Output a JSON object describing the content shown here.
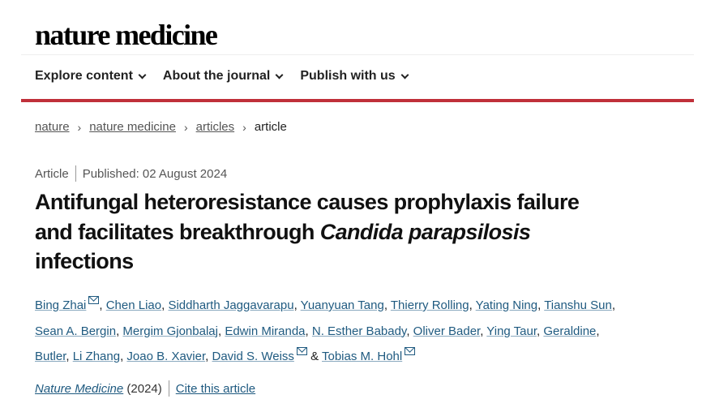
{
  "logo": "nature medicine",
  "nav": [
    "Explore content",
    "About the journal",
    "Publish with us"
  ],
  "breadcrumb": [
    "nature",
    "nature medicine",
    "articles",
    "article"
  ],
  "meta": {
    "type": "Article",
    "published": "Published: 02 August 2024"
  },
  "title": {
    "line1": "Antifungal heteroresistance causes prophylaxis failure",
    "line2a": "and facilitates breakthrough ",
    "line2b": "Candida parapsilosis",
    "line3": "infections"
  },
  "authors": [
    [
      {
        "n": "Bing Zhai",
        "m": true
      },
      {
        "n": "Chen Liao"
      },
      {
        "n": "Siddharth Jaggavarapu"
      },
      {
        "n": "Yuanyuan Tang"
      },
      {
        "n": "Thierry Rolling"
      },
      {
        "n": "Yating Ning"
      },
      {
        "n": "Tianshu Sun"
      }
    ],
    [
      {
        "n": "Sean A. Bergin"
      },
      {
        "n": "Mergim Gjonbalaj"
      },
      {
        "n": "Edwin Miranda"
      },
      {
        "n": "N. Esther Babady"
      },
      {
        "n": "Oliver Bader"
      },
      {
        "n": "Ying Taur"
      },
      {
        "n": "Geraldine"
      }
    ],
    [
      {
        "n": "Butler"
      },
      {
        "n": "Li Zhang"
      },
      {
        "n": "Joao B. Xavier"
      },
      {
        "n": "David S. Weiss",
        "m": true
      },
      {
        "n": "Tobias M. Hohl",
        "m": true
      }
    ]
  ],
  "cite": {
    "journal": "Nature Medicine",
    "year": "(2024)",
    "link": "Cite this article"
  },
  "colors": {
    "accent": "#c0303a",
    "link": "#1f5a80"
  }
}
